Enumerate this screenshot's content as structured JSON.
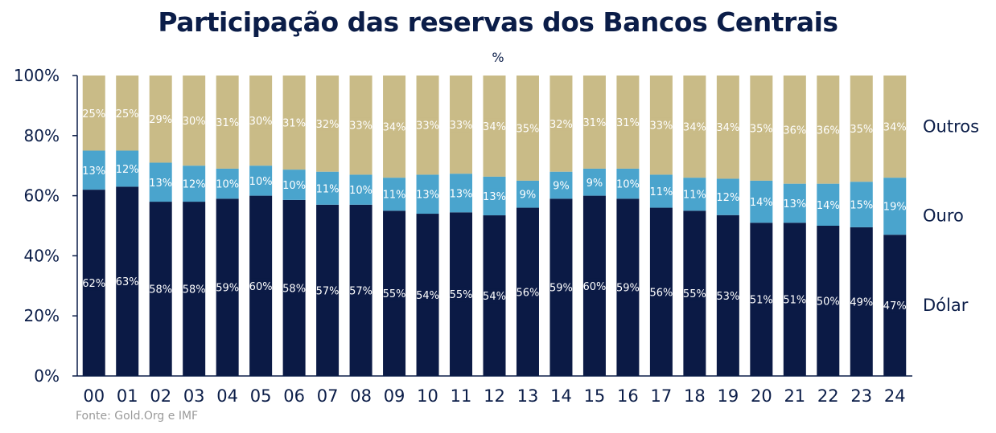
{
  "chart_data": {
    "type": "bar",
    "stacked": true,
    "percent_stacked": true,
    "title": "Participação das reservas dos Bancos Centrais",
    "subtitle": "%",
    "source": "Fonte: Gold.Org e IMF",
    "categories": [
      "00",
      "01",
      "02",
      "03",
      "04",
      "05",
      "06",
      "07",
      "08",
      "09",
      "10",
      "11",
      "12",
      "13",
      "14",
      "15",
      "16",
      "17",
      "18",
      "19",
      "20",
      "21",
      "22",
      "23",
      "24"
    ],
    "ylim": [
      0,
      100
    ],
    "yticks": [
      "0%",
      "20%",
      "40%",
      "60%",
      "80%",
      "100%"
    ],
    "legend_placement": "right",
    "value_suffix": "%",
    "series": [
      {
        "name": "Dólar",
        "color": "#0b1a45",
        "label_bg": "#0b1a45",
        "label_color": "#ffffff",
        "values": [
          62,
          63,
          58,
          58,
          59,
          60,
          58,
          57,
          57,
          55,
          54,
          55,
          54,
          56,
          59,
          60,
          59,
          56,
          55,
          53,
          51,
          51,
          50,
          49,
          47
        ]
      },
      {
        "name": "Ouro",
        "color": "#4aa4cd",
        "label_bg": "#4aa4cd",
        "label_color": "#ffffff",
        "values": [
          13,
          12,
          13,
          12,
          10,
          10,
          10,
          11,
          10,
          11,
          13,
          13,
          13,
          9,
          9,
          9,
          10,
          11,
          11,
          12,
          14,
          13,
          14,
          15,
          19
        ]
      },
      {
        "name": "Outros",
        "color": "#c9bb87",
        "label_bg": "#c9bb87",
        "label_color": "#ffffff",
        "values": [
          25,
          25,
          29,
          30,
          31,
          30,
          31,
          32,
          33,
          34,
          33,
          33,
          34,
          35,
          32,
          31,
          31,
          33,
          34,
          34,
          35,
          36,
          36,
          35,
          34
        ]
      }
    ]
  }
}
